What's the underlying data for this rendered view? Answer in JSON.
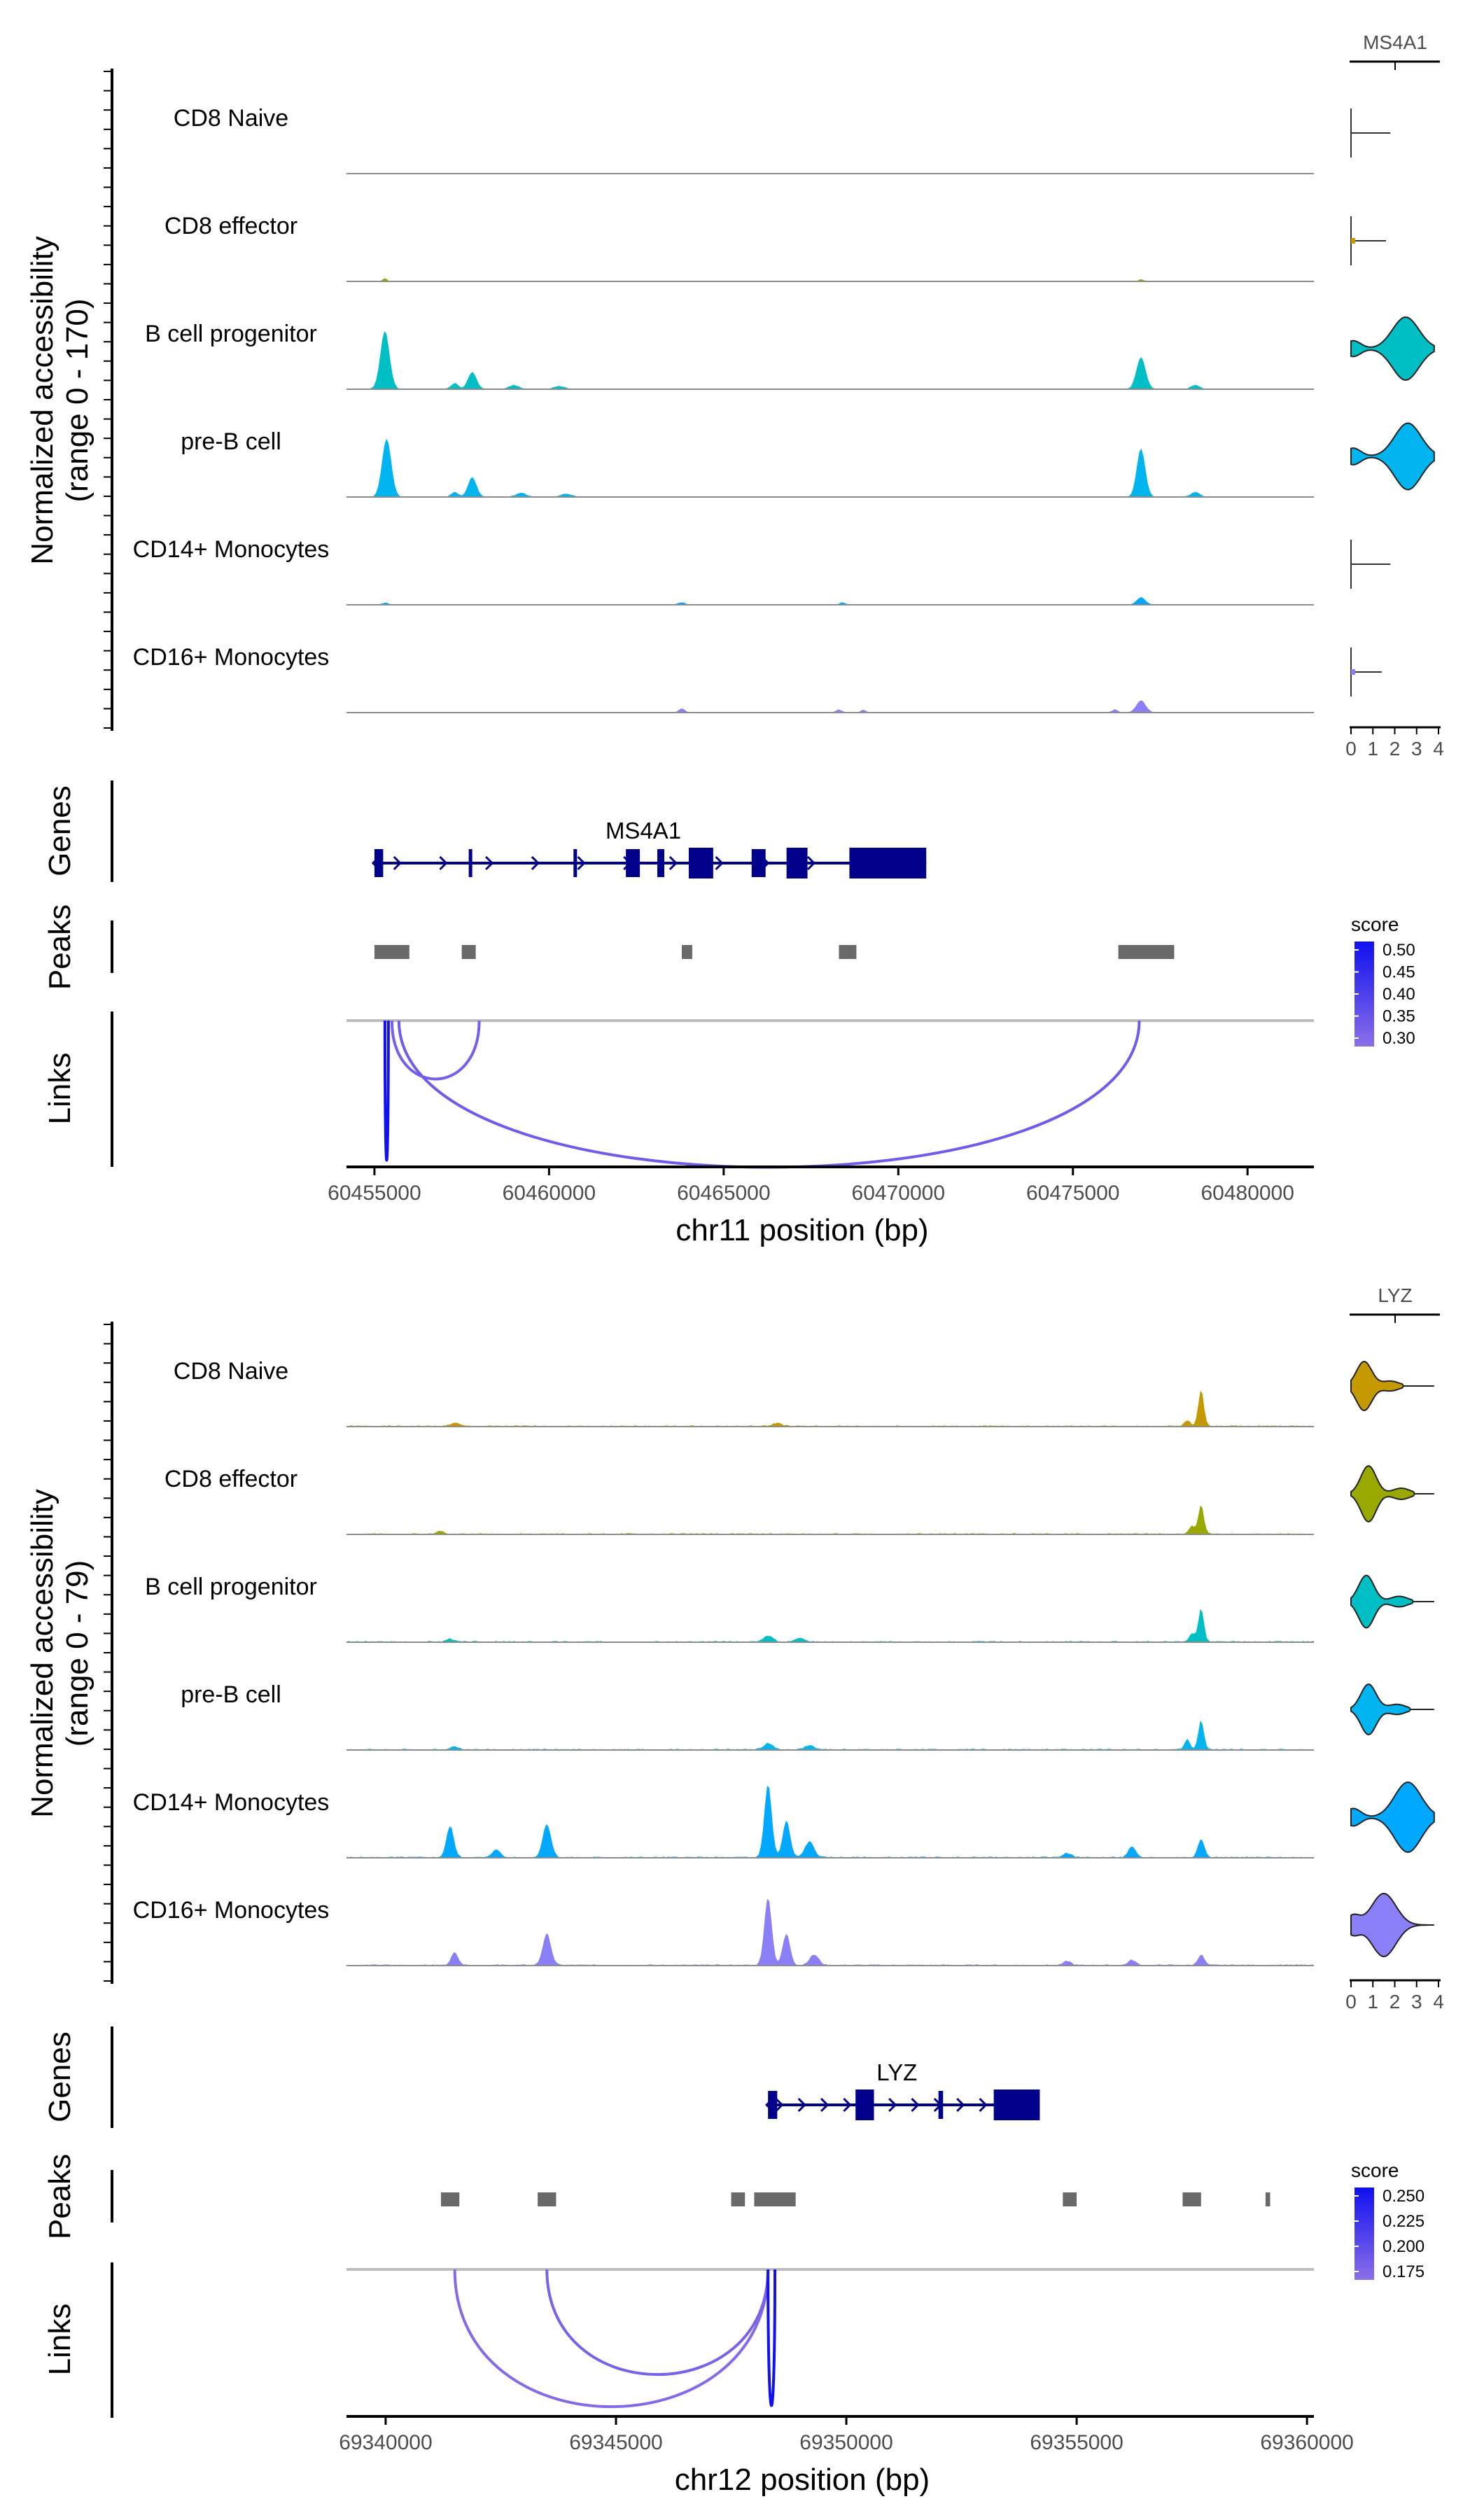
{
  "chart_data": [
    {
      "type": "area",
      "title": "",
      "chrom_label": "chr11 position (bp)",
      "xlim": [
        60454200,
        60481900
      ],
      "x_ticks": [
        60455000,
        60460000,
        60465000,
        60470000,
        60475000,
        60480000
      ],
      "x_tick_labels": [
        "60455000",
        "60460000",
        "60465000",
        "60470000",
        "60475000",
        "60480000"
      ],
      "ylabel": "Normalized accessibility",
      "ylabel_range": "(range 0 - 170)",
      "ymax": 170,
      "track_labels": {
        "genes": "Genes",
        "peaks": "Peaks",
        "links": "Links"
      },
      "violin_title": "MS4A1",
      "violin_ticks": [
        "0",
        "1",
        "2",
        "3",
        "4"
      ],
      "series": [
        {
          "name": "CD8 Naive",
          "color": "#C49A00",
          "peaks": []
        },
        {
          "name": "CD8 effector",
          "color": "#99A800",
          "peaks": [
            [
              60455300,
              6,
              60
            ],
            [
              60476950,
              4,
              60
            ]
          ]
        },
        {
          "name": "B cell progenitor",
          "color": "#00BFC4",
          "peaks": [
            [
              60455300,
              120,
              130
            ],
            [
              60457800,
              35,
              120
            ],
            [
              60457300,
              12,
              100
            ],
            [
              60459000,
              8,
              140
            ],
            [
              60460300,
              6,
              150
            ],
            [
              60476950,
              65,
              130
            ],
            [
              60478500,
              8,
              120
            ]
          ]
        },
        {
          "name": "pre-B cell",
          "color": "#00B4EF",
          "peaks": [
            [
              60455350,
              120,
              130
            ],
            [
              60457800,
              40,
              120
            ],
            [
              60457300,
              10,
              100
            ],
            [
              60459200,
              8,
              140
            ],
            [
              60460500,
              6,
              150
            ],
            [
              60476950,
              100,
              120
            ],
            [
              60478500,
              10,
              120
            ]
          ]
        },
        {
          "name": "CD14+ Monocytes",
          "color": "#00A9FF",
          "peaks": [
            [
              60455300,
              4,
              80
            ],
            [
              60463800,
              4,
              100
            ],
            [
              60468400,
              5,
              80
            ],
            [
              60476950,
              15,
              120
            ]
          ]
        },
        {
          "name": "CD16+ Monocytes",
          "color": "#8B7FF7",
          "peaks": [
            [
              60463800,
              8,
              80
            ],
            [
              60468300,
              6,
              80
            ],
            [
              60469000,
              5,
              80
            ],
            [
              60476950,
              25,
              130
            ],
            [
              60476200,
              6,
              80
            ]
          ]
        }
      ],
      "violins": [
        {
          "color": "#ffffff",
          "shape": "flat",
          "center": 0.05,
          "tail": 1.6,
          "width": 0.05
        },
        {
          "color": "#C49A00",
          "shape": "flat",
          "center": 0.05,
          "tail": 1.4,
          "width": 0.15
        },
        {
          "color": "#00BFC4",
          "shape": "main",
          "center": 2.5,
          "tail": 0.2,
          "width": 0.9
        },
        {
          "color": "#00B4EF",
          "shape": "main",
          "center": 2.6,
          "tail": 0.2,
          "width": 0.95
        },
        {
          "color": "#ffffff",
          "shape": "flat",
          "center": 0.05,
          "tail": 1.6,
          "width": 0.05
        },
        {
          "color": "#8B7FF7",
          "shape": "flat",
          "center": 0.1,
          "tail": 1.2,
          "width": 0.2
        }
      ],
      "gene": {
        "name": "MS4A1",
        "start": 60455000,
        "end": 60470800,
        "exons": [
          [
            60455000,
            60455250
          ],
          [
            60457700,
            60457800
          ],
          [
            60460700,
            60460800
          ],
          [
            60462200,
            60462600
          ],
          [
            60463100,
            60463300
          ],
          [
            60464000,
            60464700
          ],
          [
            60465800,
            60466200
          ],
          [
            60466800,
            60467400
          ],
          [
            60468600,
            60470800
          ]
        ]
      },
      "peaks_regions": [
        [
          60455000,
          60456000
        ],
        [
          60457500,
          60457900
        ],
        [
          60463800,
          60464100
        ],
        [
          60468300,
          60468800
        ],
        [
          60476300,
          60477900
        ]
      ],
      "links": [
        {
          "from": 60455300,
          "to": 60455400,
          "score": 0.52
        },
        {
          "from": 60455500,
          "to": 60458000,
          "score": 0.32
        },
        {
          "from": 60455700,
          "to": 60476900,
          "score": 0.33
        }
      ],
      "score_legend": {
        "title": "score",
        "labels": [
          "0.50",
          "0.45",
          "0.40",
          "0.35",
          "0.30"
        ],
        "min": 0.28,
        "max": 0.52
      }
    },
    {
      "type": "area",
      "title": "",
      "chrom_label": "chr12 position (bp)",
      "xlim": [
        69339150,
        69360150
      ],
      "x_ticks": [
        69340000,
        69345000,
        69350000,
        69355000,
        69360000
      ],
      "x_tick_labels": [
        "69340000",
        "69345000",
        "69350000",
        "69355000",
        "69360000"
      ],
      "ylabel": "Normalized accessibility",
      "ylabel_range": "(range 0 - 79)",
      "ymax": 79,
      "track_labels": {
        "genes": "Genes",
        "peaks": "Peaks",
        "links": "Links"
      },
      "violin_title": "LYZ",
      "violin_ticks": [
        "0",
        "1",
        "2",
        "3",
        "4"
      ],
      "series": [
        {
          "name": "CD8 Naive",
          "color": "#C49A00",
          "peaks": [
            [
              69357700,
              35,
              60
            ],
            [
              69357400,
              6,
              60
            ],
            [
              69341500,
              3,
              100
            ],
            [
              69348500,
              3,
              100
            ]
          ]
        },
        {
          "name": "CD8 effector",
          "color": "#99A800",
          "peaks": [
            [
              69357700,
              28,
              60
            ],
            [
              69357500,
              8,
              60
            ],
            [
              69341200,
              3,
              80
            ]
          ]
        },
        {
          "name": "B cell progenitor",
          "color": "#00BFC4",
          "peaks": [
            [
              69357700,
              32,
              60
            ],
            [
              69357500,
              8,
              60
            ],
            [
              69348300,
              6,
              100
            ],
            [
              69349000,
              4,
              100
            ],
            [
              69341400,
              3,
              80
            ]
          ]
        },
        {
          "name": "pre-B cell",
          "color": "#00B4EF",
          "peaks": [
            [
              69357700,
              28,
              60
            ],
            [
              69357400,
              10,
              60
            ],
            [
              69348300,
              6,
              100
            ],
            [
              69349200,
              4,
              100
            ],
            [
              69341500,
              3,
              80
            ]
          ]
        },
        {
          "name": "CD14+ Monocytes",
          "color": "#00A9FF",
          "peaks": [
            [
              69341400,
              30,
              80
            ],
            [
              69343500,
              32,
              90
            ],
            [
              69348300,
              70,
              80
            ],
            [
              69348700,
              35,
              80
            ],
            [
              69349200,
              15,
              100
            ],
            [
              69342400,
              8,
              80
            ],
            [
              69356200,
              10,
              80
            ],
            [
              69357700,
              18,
              70
            ],
            [
              69354800,
              4,
              100
            ]
          ]
        },
        {
          "name": "CD16+ Monocytes",
          "color": "#8B7FF7",
          "peaks": [
            [
              69341500,
              12,
              80
            ],
            [
              69343500,
              30,
              90
            ],
            [
              69348300,
              65,
              80
            ],
            [
              69348700,
              30,
              80
            ],
            [
              69349300,
              10,
              100
            ],
            [
              69357700,
              10,
              70
            ],
            [
              69356200,
              5,
              80
            ],
            [
              69354800,
              4,
              80
            ]
          ]
        }
      ],
      "violins": [
        {
          "color": "#C49A00",
          "shape": "lyz",
          "center": 0.6,
          "tail": 1.8,
          "width": 0.7
        },
        {
          "color": "#99A800",
          "shape": "lyz",
          "center": 0.8,
          "tail": 2.3,
          "width": 0.8
        },
        {
          "color": "#00BFC4",
          "shape": "lyz",
          "center": 0.7,
          "tail": 2.2,
          "width": 0.75
        },
        {
          "color": "#00B4EF",
          "shape": "lyz",
          "center": 0.8,
          "tail": 2.1,
          "width": 0.72
        },
        {
          "color": "#00A9FF",
          "shape": "main",
          "center": 2.6,
          "tail": 0.3,
          "width": 1.0
        },
        {
          "color": "#8B7FF7",
          "shape": "mid",
          "center": 1.5,
          "tail": 0.3,
          "width": 0.9
        }
      ],
      "gene": {
        "name": "LYZ",
        "start": 69348300,
        "end": 69354200,
        "exons": [
          [
            69348300,
            69348500
          ],
          [
            69350200,
            69350600
          ],
          [
            69352000,
            69352100
          ],
          [
            69353200,
            69354200
          ]
        ]
      },
      "peaks_regions": [
        [
          69341200,
          69341600
        ],
        [
          69343300,
          69343700
        ],
        [
          69347500,
          69347800
        ],
        [
          69348000,
          69348900
        ],
        [
          69354700,
          69355000
        ],
        [
          69357300,
          69357700
        ],
        [
          69359100,
          69359200
        ]
      ],
      "links": [
        {
          "from": 69341500,
          "to": 69348300,
          "score": 0.16
        },
        {
          "from": 69343500,
          "to": 69348300,
          "score": 0.17
        },
        {
          "from": 69348300,
          "to": 69348450,
          "score": 0.26
        }
      ],
      "score_legend": {
        "title": "score",
        "labels": [
          "0.250",
          "0.225",
          "0.200",
          "0.175"
        ],
        "min": 0.155,
        "max": 0.26
      }
    }
  ],
  "colors": {
    "gene": "#00008B",
    "peak_region": "#696969",
    "link_low": "#8B6FE8",
    "link_high": "#1010F0"
  }
}
